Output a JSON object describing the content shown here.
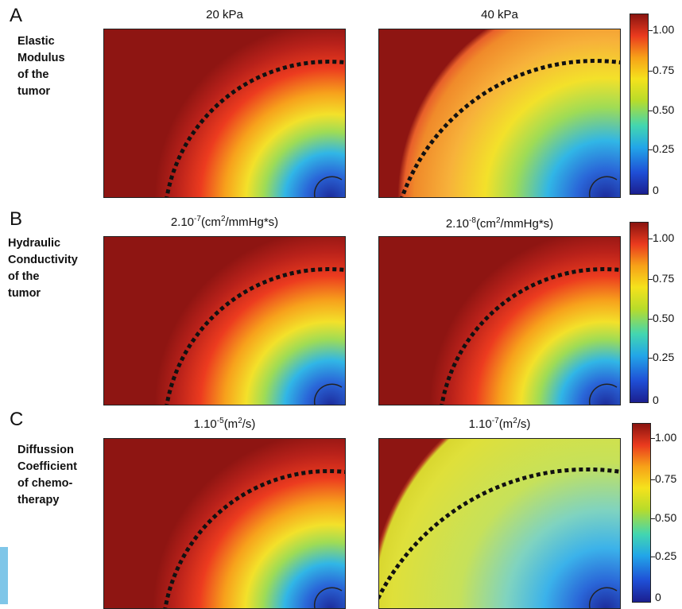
{
  "rows": [
    {
      "letter": "A",
      "label_lines": [
        "Elastic",
        "Modulus",
        "of the",
        "tumor"
      ],
      "panels": [
        {
          "title_base": "20 kPa",
          "title_exp": "",
          "title_suffix": "",
          "title_sup2": "",
          "title_tail": "",
          "variant": "red-core"
        },
        {
          "title_base": "40 kPa",
          "title_exp": "",
          "title_suffix": "",
          "title_sup2": "",
          "title_tail": "",
          "variant": "orange-wide"
        }
      ]
    },
    {
      "letter": "B",
      "label_lines": [
        "Hydraulic",
        "Conductivity",
        "of the",
        "tumor"
      ],
      "panels": [
        {
          "title_base": "2.10",
          "title_exp": "-7",
          "title_suffix": "(cm",
          "title_sup2": "2",
          "title_tail": "/mmHg*s)",
          "variant": "red-core"
        },
        {
          "title_base": "2.10",
          "title_exp": "-8",
          "title_suffix": "(cm",
          "title_sup2": "2",
          "title_tail": "/mmHg*s)",
          "variant": "red-core"
        }
      ]
    },
    {
      "letter": "C",
      "label_lines": [
        "Diffussion",
        "Coefficient",
        "of chemo-",
        "therapy"
      ],
      "panels": [
        {
          "title_base": "1.10",
          "title_exp": "-5",
          "title_suffix": "(m",
          "title_sup2": "2",
          "title_tail": "/s)",
          "variant": "red-core"
        },
        {
          "title_base": "1.10",
          "title_exp": "-7",
          "title_suffix": "(m",
          "title_sup2": "2",
          "title_tail": "/s)",
          "variant": "yellow-wide"
        }
      ]
    }
  ],
  "colorbar": {
    "ticks": [
      "1.00",
      "0.75",
      "0.50",
      "0.25",
      "0"
    ],
    "colormap": [
      "#1b1f8f",
      "#22a6e8",
      "#b8dc2a",
      "#f5e21c",
      "#ea3a1e",
      "#8a1410"
    ]
  },
  "colors": {
    "background_dark_red": "#8e1512",
    "boundary_line": "#111111"
  }
}
